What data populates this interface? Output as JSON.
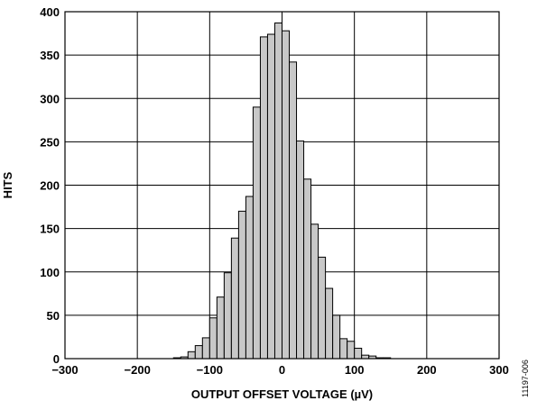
{
  "chart_data": {
    "type": "bar",
    "title": "",
    "xlabel": "OUTPUT OFFSET VOLTAGE (µV)",
    "ylabel": "HITS",
    "xlim": [
      -300,
      300
    ],
    "ylim": [
      0,
      400
    ],
    "grid": true,
    "bin_width": 10,
    "x_ticks": [
      -300,
      -200,
      -100,
      0,
      100,
      200,
      300
    ],
    "x_tick_labels": [
      "−300",
      "−200",
      "−100",
      "0",
      "100",
      "200",
      "300"
    ],
    "y_ticks": [
      0,
      50,
      100,
      150,
      200,
      250,
      300,
      350,
      400
    ],
    "y_tick_labels": [
      "0",
      "50",
      "100",
      "150",
      "200",
      "250",
      "300",
      "350",
      "400"
    ],
    "bar_color": "#c8c8c8",
    "x": [
      -150,
      -140,
      -130,
      -120,
      -110,
      -100,
      -90,
      -80,
      -70,
      -60,
      -50,
      -40,
      -30,
      -20,
      -10,
      0,
      10,
      20,
      30,
      40,
      50,
      60,
      70,
      80,
      90,
      100,
      110,
      120,
      130,
      140,
      150,
      160,
      170,
      180,
      190,
      200
    ],
    "values": [
      1,
      2,
      8,
      15,
      24,
      47,
      71,
      99,
      139,
      170,
      187,
      290,
      371,
      374,
      387,
      378,
      342,
      251,
      207,
      155,
      117,
      81,
      50,
      23,
      20,
      12,
      4,
      3,
      1,
      1,
      0,
      0,
      0,
      0,
      0,
      0
    ]
  },
  "figure_id": "11197-006"
}
